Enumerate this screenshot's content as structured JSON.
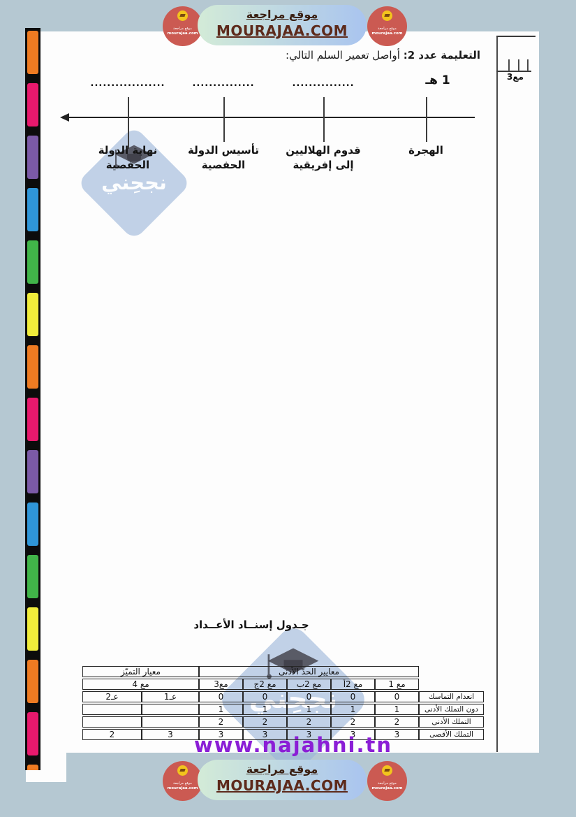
{
  "theme": {
    "bg": "#b5c8d2",
    "page": "#fdfdfd",
    "ink": "#1c1c1c",
    "pill-a": "#d3ebd7",
    "pill-b": "#a9c4ef",
    "pill-ar": "#3a2013",
    "pill-url": "#5d2a1b",
    "logo-red": "#cb5a52",
    "logo-yellow": "#f2c41d",
    "wm-blue": "rgba(154,180,216,0.6)",
    "url-purple": "#8b1ed6"
  },
  "film_strip": {
    "segments": [
      "#ee7b22",
      "#e8196d",
      "#7b5aa6",
      "#2f96d8",
      "#41b549",
      "#f0ec3b",
      "#ee7b22",
      "#e8196d",
      "#7b5aa6",
      "#2f96d8",
      "#41b549",
      "#f0ec3b",
      "#ee7b22",
      "#e8196d",
      "#ee7b22"
    ]
  },
  "banner": {
    "site_ar": "موقع مراجعة",
    "site_url": "MOURAJAA.COM"
  },
  "logo_badge": {
    "line_ar": "موقع مراجعة",
    "line_url": "mourajaa.com"
  },
  "instruction": {
    "prefix": "التعليمة عدد 2:",
    "text": "أواصل تعمير السلم التالي:"
  },
  "timeline": {
    "points": [
      {
        "top": "1 هـ",
        "lines": [
          "الهجرة",
          ""
        ]
      },
      {
        "top": "...............",
        "lines": [
          "قدوم الهلاليين",
          "إلى إفريقية"
        ]
      },
      {
        "top": "...............",
        "lines": [
          "تأسيس الدولة",
          "الحفصية"
        ]
      },
      {
        "top": "..................",
        "lines": [
          "نهاية الدولة",
          "الحفصية"
        ]
      }
    ]
  },
  "watermark": {
    "brand": "نجحِني",
    "site": "www.najahni.tn"
  },
  "side_fragment": {
    "label": "مع3"
  },
  "grades_table": {
    "title": "جـدول إسنــاد الأعــداد",
    "min_header": "معايير الحدّ الأدنى",
    "exc_header": "معيار التميّز",
    "col_headers": [
      "مع 1",
      "مع 2أ",
      "مع 2ب",
      "مع 2ج",
      "مع3"
    ],
    "exc_col": "مع 4",
    "rows": [
      {
        "label": "انعدام التماسك",
        "values": [
          "0",
          "0",
          "0",
          "0",
          "0",
          "عـ1",
          "عـ2"
        ]
      },
      {
        "label": "دون التملك الأدنى",
        "values": [
          "1",
          "1",
          "1",
          "1",
          "1",
          "",
          ""
        ]
      },
      {
        "label": "التملك الأدنى",
        "values": [
          "2",
          "2",
          "2",
          "2",
          "2",
          "",
          ""
        ]
      },
      {
        "label": "التملك الأقصى",
        "values": [
          "3",
          "3",
          "3",
          "3",
          "3",
          "3",
          "2"
        ]
      }
    ]
  }
}
